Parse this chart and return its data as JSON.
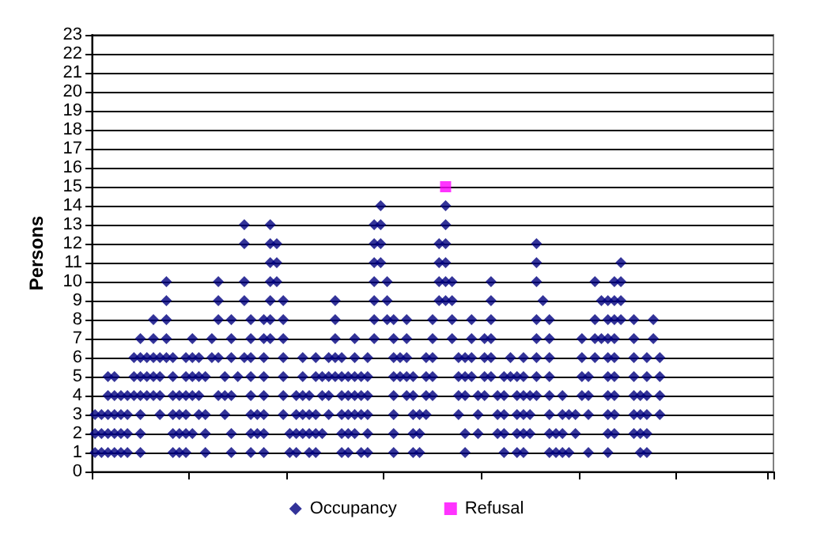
{
  "chart_data": {
    "type": "scatter",
    "ylabel": "Persons",
    "categories": [
      null,
      null,
      null,
      null,
      null,
      null,
      null,
      null,
      null,
      null,
      null,
      null,
      null,
      null,
      null,
      null,
      null,
      null,
      null,
      null,
      null,
      null,
      null,
      null,
      null,
      null,
      null,
      null,
      null,
      null,
      null,
      null,
      null,
      null,
      null,
      null,
      null,
      null,
      null,
      null,
      null,
      null,
      null,
      null,
      null,
      null,
      null,
      null,
      null,
      null,
      null,
      null,
      null,
      null,
      null,
      null,
      null,
      null,
      null,
      null,
      null,
      null,
      null,
      null,
      null,
      null,
      null,
      null,
      null,
      null,
      null,
      null,
      null,
      null,
      null,
      null,
      null,
      null,
      null,
      null,
      null,
      null,
      null,
      null,
      null,
      null,
      null,
      null,
      null,
      null,
      null,
      null,
      null,
      null,
      null,
      null,
      null,
      null,
      null,
      null,
      null,
      null,
      null,
      null,
      null
    ],
    "ylim": [
      0,
      23
    ],
    "yticks": [
      0,
      1,
      2,
      3,
      4,
      5,
      6,
      7,
      8,
      9,
      10,
      11,
      12,
      13,
      14,
      15,
      16,
      17,
      18,
      19,
      20,
      21,
      22,
      23
    ],
    "tick_labels": "y",
    "grid": "y",
    "legend": "bottom",
    "marker": "diamond",
    "series": [
      {
        "name": "Occupancy",
        "color": "#000080",
        "values": [
          1,
          1,
          1,
          1,
          1,
          1,
          null,
          1,
          null,
          null,
          null,
          null,
          1,
          1,
          1,
          null,
          null,
          1,
          null,
          null,
          null,
          1,
          null,
          null,
          1,
          null,
          1,
          null,
          null,
          null,
          1,
          1,
          null,
          1,
          1,
          null,
          null,
          null,
          1,
          1,
          null,
          1,
          1,
          null,
          null,
          null,
          1,
          null,
          null,
          1,
          1,
          null,
          null,
          null,
          null,
          null,
          null,
          1,
          null,
          null,
          null,
          null,
          null,
          1,
          null,
          1,
          1,
          null,
          null,
          null,
          1,
          1,
          1,
          1,
          null,
          null,
          1,
          null,
          null,
          1,
          null,
          null,
          null,
          null,
          1,
          1,
          null,
          null,
          null,
          null,
          null,
          null,
          null,
          null,
          null,
          null,
          null,
          null,
          null,
          null,
          null,
          null,
          null,
          null,
          null
        ]
      },
      {
        "color": "#000080",
        "values": [
          2,
          2,
          2,
          2,
          2,
          2,
          null,
          2,
          null,
          null,
          null,
          null,
          2,
          2,
          2,
          2,
          null,
          2,
          null,
          null,
          null,
          2,
          null,
          null,
          2,
          2,
          2,
          null,
          null,
          null,
          2,
          2,
          2,
          2,
          2,
          2,
          null,
          null,
          2,
          2,
          2,
          null,
          2,
          null,
          null,
          null,
          2,
          null,
          null,
          2,
          2,
          null,
          null,
          null,
          null,
          null,
          null,
          2,
          null,
          2,
          null,
          null,
          2,
          2,
          null,
          2,
          2,
          2,
          null,
          null,
          2,
          2,
          2,
          null,
          2,
          null,
          null,
          null,
          null,
          2,
          2,
          null,
          null,
          2,
          2,
          2,
          null,
          null,
          null,
          null,
          null,
          null,
          null,
          null,
          null,
          null,
          null,
          null,
          null,
          null,
          null,
          null,
          null,
          null,
          null
        ]
      },
      {
        "color": "#000080",
        "values": [
          3,
          3,
          3,
          3,
          3,
          3,
          null,
          3,
          null,
          null,
          3,
          null,
          3,
          3,
          3,
          null,
          3,
          3,
          null,
          null,
          3,
          null,
          null,
          null,
          3,
          3,
          3,
          null,
          null,
          3,
          null,
          3,
          3,
          3,
          3,
          null,
          3,
          null,
          3,
          3,
          3,
          3,
          3,
          null,
          null,
          null,
          3,
          null,
          null,
          3,
          3,
          3,
          null,
          null,
          null,
          null,
          3,
          null,
          null,
          3,
          null,
          null,
          3,
          3,
          null,
          3,
          3,
          3,
          null,
          null,
          3,
          null,
          3,
          3,
          3,
          null,
          3,
          null,
          null,
          3,
          3,
          null,
          null,
          3,
          3,
          3,
          null,
          3,
          null,
          null,
          null,
          null,
          null,
          null,
          null,
          null,
          null,
          null,
          null,
          null,
          null,
          null,
          null,
          null,
          null
        ]
      },
      {
        "color": "#000080",
        "values": [
          null,
          null,
          4,
          4,
          4,
          4,
          4,
          4,
          4,
          4,
          4,
          null,
          4,
          4,
          4,
          4,
          4,
          null,
          null,
          4,
          4,
          4,
          null,
          null,
          4,
          null,
          4,
          null,
          null,
          4,
          null,
          4,
          4,
          4,
          null,
          4,
          4,
          null,
          4,
          4,
          4,
          4,
          4,
          null,
          null,
          null,
          4,
          null,
          4,
          4,
          null,
          4,
          4,
          null,
          null,
          null,
          4,
          4,
          null,
          4,
          4,
          null,
          4,
          4,
          null,
          4,
          4,
          4,
          4,
          null,
          4,
          null,
          4,
          null,
          null,
          4,
          4,
          null,
          null,
          4,
          4,
          null,
          null,
          4,
          4,
          4,
          null,
          4,
          null,
          null,
          null,
          null,
          null,
          null,
          null,
          null,
          null,
          null,
          null,
          null,
          null,
          null,
          null,
          null,
          null
        ]
      },
      {
        "color": "#000080",
        "values": [
          null,
          null,
          5,
          5,
          null,
          null,
          5,
          5,
          5,
          5,
          5,
          null,
          5,
          null,
          5,
          5,
          5,
          5,
          null,
          null,
          5,
          null,
          5,
          null,
          5,
          null,
          5,
          null,
          null,
          5,
          null,
          null,
          5,
          null,
          5,
          5,
          5,
          5,
          5,
          5,
          5,
          5,
          5,
          null,
          null,
          null,
          5,
          5,
          5,
          5,
          null,
          5,
          5,
          null,
          null,
          null,
          5,
          5,
          5,
          null,
          5,
          5,
          null,
          5,
          5,
          5,
          5,
          null,
          5,
          null,
          5,
          null,
          null,
          null,
          null,
          5,
          5,
          null,
          null,
          5,
          5,
          null,
          null,
          5,
          null,
          5,
          null,
          5,
          null,
          null,
          null,
          null,
          null,
          null,
          null,
          null,
          null,
          null,
          null,
          null,
          null,
          null,
          null,
          null,
          null
        ]
      },
      {
        "color": "#000080",
        "values": [
          null,
          null,
          null,
          null,
          null,
          null,
          6,
          6,
          6,
          6,
          6,
          6,
          6,
          null,
          6,
          6,
          6,
          null,
          6,
          6,
          null,
          6,
          null,
          6,
          6,
          null,
          6,
          null,
          null,
          6,
          null,
          null,
          6,
          null,
          6,
          null,
          6,
          6,
          6,
          null,
          6,
          null,
          6,
          null,
          null,
          null,
          6,
          6,
          6,
          null,
          null,
          6,
          6,
          null,
          null,
          null,
          6,
          6,
          6,
          null,
          6,
          6,
          null,
          null,
          6,
          null,
          6,
          null,
          6,
          null,
          6,
          null,
          null,
          null,
          null,
          6,
          null,
          6,
          null,
          6,
          6,
          null,
          null,
          6,
          null,
          6,
          null,
          6,
          null,
          null,
          null,
          null,
          null,
          null,
          null,
          null,
          null,
          null,
          null,
          null,
          null,
          null,
          null,
          null,
          null
        ]
      },
      {
        "color": "#000080",
        "values": [
          null,
          null,
          null,
          null,
          null,
          null,
          null,
          7,
          null,
          7,
          null,
          7,
          null,
          null,
          null,
          7,
          null,
          null,
          7,
          null,
          null,
          7,
          null,
          null,
          7,
          null,
          7,
          7,
          null,
          7,
          null,
          null,
          null,
          null,
          null,
          null,
          null,
          7,
          null,
          null,
          7,
          null,
          null,
          7,
          null,
          null,
          7,
          null,
          7,
          null,
          null,
          null,
          7,
          null,
          null,
          7,
          null,
          null,
          7,
          null,
          7,
          7,
          null,
          null,
          null,
          null,
          null,
          null,
          7,
          null,
          7,
          null,
          null,
          null,
          null,
          7,
          null,
          7,
          7,
          7,
          7,
          null,
          null,
          7,
          null,
          null,
          7,
          null,
          null,
          null,
          null,
          null,
          null,
          null,
          null,
          null,
          null,
          null,
          null,
          null,
          null,
          null,
          null,
          null,
          null
        ]
      },
      {
        "color": "#000080",
        "values": [
          null,
          null,
          null,
          null,
          null,
          null,
          null,
          null,
          null,
          8,
          null,
          8,
          null,
          null,
          null,
          null,
          null,
          null,
          null,
          8,
          null,
          8,
          null,
          null,
          8,
          null,
          8,
          8,
          null,
          8,
          null,
          null,
          null,
          null,
          null,
          null,
          null,
          8,
          null,
          null,
          null,
          null,
          null,
          8,
          null,
          8,
          8,
          null,
          8,
          null,
          null,
          null,
          8,
          null,
          null,
          8,
          null,
          null,
          8,
          null,
          null,
          8,
          null,
          null,
          null,
          null,
          null,
          null,
          8,
          null,
          8,
          null,
          null,
          null,
          null,
          null,
          null,
          8,
          null,
          8,
          8,
          8,
          null,
          8,
          null,
          null,
          8,
          null,
          null,
          null,
          null,
          null,
          null,
          null,
          null,
          null,
          null,
          null,
          null,
          null,
          null,
          null,
          null,
          null,
          null
        ]
      },
      {
        "color": "#000080",
        "values": [
          null,
          null,
          null,
          null,
          null,
          null,
          null,
          null,
          null,
          null,
          null,
          9,
          null,
          null,
          null,
          null,
          null,
          null,
          null,
          9,
          null,
          null,
          null,
          9,
          null,
          null,
          null,
          9,
          null,
          9,
          null,
          null,
          null,
          null,
          null,
          null,
          null,
          9,
          null,
          null,
          null,
          null,
          null,
          9,
          null,
          9,
          null,
          null,
          null,
          null,
          null,
          null,
          null,
          9,
          9,
          9,
          null,
          null,
          null,
          null,
          null,
          9,
          null,
          null,
          null,
          null,
          null,
          null,
          null,
          9,
          null,
          null,
          null,
          null,
          null,
          null,
          null,
          null,
          9,
          9,
          9,
          9,
          null,
          null,
          null,
          null,
          null,
          null,
          null,
          null,
          null,
          null,
          null,
          null,
          null,
          null,
          null,
          null,
          null,
          null,
          null,
          null,
          null,
          null,
          null
        ]
      },
      {
        "color": "#000080",
        "values": [
          null,
          null,
          null,
          null,
          null,
          null,
          null,
          null,
          null,
          null,
          null,
          10,
          null,
          null,
          null,
          null,
          null,
          null,
          null,
          10,
          null,
          null,
          null,
          10,
          null,
          null,
          null,
          10,
          10,
          null,
          null,
          null,
          null,
          null,
          null,
          null,
          null,
          null,
          null,
          null,
          null,
          null,
          null,
          10,
          null,
          10,
          null,
          null,
          null,
          null,
          null,
          null,
          null,
          10,
          10,
          10,
          null,
          null,
          null,
          null,
          null,
          10,
          null,
          null,
          null,
          null,
          null,
          null,
          10,
          null,
          null,
          null,
          null,
          null,
          null,
          null,
          null,
          10,
          null,
          null,
          10,
          10,
          null,
          null,
          null,
          null,
          null,
          null,
          null,
          null,
          null,
          null,
          null,
          null,
          null,
          null,
          null,
          null,
          null,
          null,
          null,
          null,
          null,
          null,
          null
        ]
      },
      {
        "color": "#000080",
        "values": [
          null,
          null,
          null,
          null,
          null,
          null,
          null,
          null,
          null,
          null,
          null,
          null,
          null,
          null,
          null,
          null,
          null,
          null,
          null,
          null,
          null,
          null,
          null,
          null,
          null,
          null,
          null,
          11,
          11,
          null,
          null,
          null,
          null,
          null,
          null,
          null,
          null,
          null,
          null,
          null,
          null,
          null,
          null,
          11,
          11,
          null,
          null,
          null,
          null,
          null,
          null,
          null,
          null,
          11,
          11,
          null,
          null,
          null,
          null,
          null,
          null,
          null,
          null,
          null,
          null,
          null,
          null,
          null,
          11,
          null,
          null,
          null,
          null,
          null,
          null,
          null,
          null,
          null,
          null,
          null,
          null,
          11,
          null,
          null,
          null,
          null,
          null,
          null,
          null,
          null,
          null,
          null,
          null,
          null,
          null,
          null,
          null,
          null,
          null,
          null,
          null,
          null,
          null,
          null,
          null
        ]
      },
      {
        "color": "#000080",
        "values": [
          null,
          null,
          null,
          null,
          null,
          null,
          null,
          null,
          null,
          null,
          null,
          null,
          null,
          null,
          null,
          null,
          null,
          null,
          null,
          null,
          null,
          null,
          null,
          12,
          null,
          null,
          null,
          12,
          12,
          null,
          null,
          null,
          null,
          null,
          null,
          null,
          null,
          null,
          null,
          null,
          null,
          null,
          null,
          12,
          12,
          null,
          null,
          null,
          null,
          null,
          null,
          null,
          null,
          12,
          12,
          null,
          null,
          null,
          null,
          null,
          null,
          null,
          null,
          null,
          null,
          null,
          null,
          null,
          12,
          null,
          null,
          null,
          null,
          null,
          null,
          null,
          null,
          null,
          null,
          null,
          null,
          null,
          null,
          null,
          null,
          null,
          null,
          null,
          null,
          null,
          null,
          null,
          null,
          null,
          null,
          null,
          null,
          null,
          null,
          null,
          null,
          null,
          null,
          null,
          null
        ]
      },
      {
        "color": "#000080",
        "values": [
          null,
          null,
          null,
          null,
          null,
          null,
          null,
          null,
          null,
          null,
          null,
          null,
          null,
          null,
          null,
          null,
          null,
          null,
          null,
          null,
          null,
          null,
          null,
          13,
          null,
          null,
          null,
          13,
          null,
          null,
          null,
          null,
          null,
          null,
          null,
          null,
          null,
          null,
          null,
          null,
          null,
          null,
          null,
          13,
          13,
          null,
          null,
          null,
          null,
          null,
          null,
          null,
          null,
          null,
          13,
          null,
          null,
          null,
          null,
          null,
          null,
          null,
          null,
          null,
          null,
          null,
          null,
          null,
          null,
          null,
          null,
          null,
          null,
          null,
          null,
          null,
          null,
          null,
          null,
          null,
          null,
          null,
          null,
          null,
          null,
          null,
          null,
          null,
          null,
          null,
          null,
          null,
          null,
          null,
          null,
          null,
          null,
          null,
          null,
          null,
          null,
          null,
          null,
          null,
          null
        ]
      },
      {
        "color": "#000080",
        "values": [
          null,
          null,
          null,
          null,
          null,
          null,
          null,
          null,
          null,
          null,
          null,
          null,
          null,
          null,
          null,
          null,
          null,
          null,
          null,
          null,
          null,
          null,
          null,
          null,
          null,
          null,
          null,
          null,
          null,
          null,
          null,
          null,
          null,
          null,
          null,
          null,
          null,
          null,
          null,
          null,
          null,
          null,
          null,
          null,
          14,
          null,
          null,
          null,
          null,
          null,
          null,
          null,
          null,
          null,
          14,
          null,
          null,
          null,
          null,
          null,
          null,
          null,
          null,
          null,
          null,
          null,
          null,
          null,
          null,
          null,
          null,
          null,
          null,
          null,
          null,
          null,
          null,
          null,
          null,
          null,
          null,
          null,
          null,
          null,
          null,
          null,
          null,
          null,
          null,
          null,
          null,
          null,
          null,
          null,
          null,
          null,
          null,
          null,
          null,
          null,
          null,
          null,
          null,
          null,
          null
        ]
      },
      {
        "name": "Refusal",
        "color": "#ff00ff",
        "marker": "square",
        "values": [
          null,
          null,
          null,
          null,
          null,
          null,
          null,
          null,
          null,
          null,
          null,
          null,
          null,
          null,
          null,
          null,
          null,
          null,
          null,
          null,
          null,
          null,
          null,
          null,
          null,
          null,
          null,
          null,
          null,
          null,
          null,
          null,
          null,
          null,
          null,
          null,
          null,
          null,
          null,
          null,
          null,
          null,
          null,
          null,
          null,
          null,
          null,
          null,
          null,
          null,
          null,
          null,
          null,
          null,
          15,
          null,
          null,
          null,
          null,
          null,
          null,
          null,
          null,
          null,
          null,
          null,
          null,
          null,
          null,
          null,
          null,
          null,
          null,
          null,
          null,
          null,
          null,
          null,
          null,
          null,
          null,
          null,
          null,
          null,
          null,
          null,
          null,
          null,
          null,
          null,
          null,
          null,
          null,
          null,
          null,
          null,
          null,
          null,
          null,
          null,
          null,
          null,
          null,
          null,
          null
        ]
      }
    ]
  }
}
